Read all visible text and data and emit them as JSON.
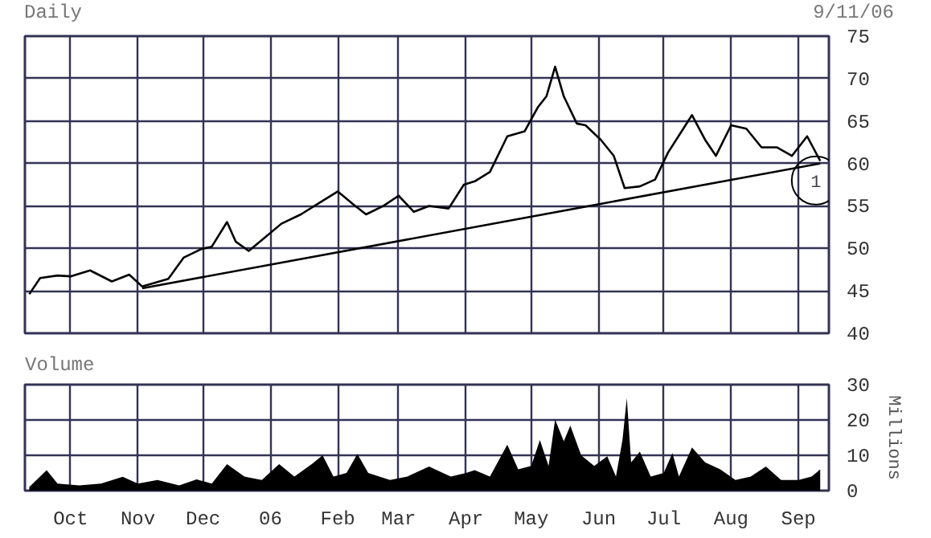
{
  "chart_data": [
    {
      "type": "line",
      "title": "Daily",
      "annotations": [
        "9/11/06",
        {
          "text": "1",
          "x": "2006-09-09",
          "y": 58.0
        }
      ],
      "x": [
        "2005-09-12",
        "2005-09-17",
        "2005-09-25",
        "2005-10-01",
        "2005-10-10",
        "2005-10-20",
        "2005-10-28",
        "2005-11-03",
        "2005-11-15",
        "2005-11-22",
        "2005-11-30",
        "2005-12-05",
        "2005-12-12",
        "2005-12-16",
        "2005-12-22",
        "2005-12-30",
        "2006-01-06",
        "2006-01-15",
        "2006-01-25",
        "2006-02-01",
        "2006-02-08",
        "2006-02-14",
        "2006-02-22",
        "2006-03-01",
        "2006-03-08",
        "2006-03-15",
        "2006-03-24",
        "2006-03-31",
        "2006-04-05",
        "2006-04-12",
        "2006-04-20",
        "2006-04-28",
        "2006-05-04",
        "2006-05-08",
        "2006-05-12",
        "2006-05-16",
        "2006-05-22",
        "2006-05-26",
        "2006-06-02",
        "2006-06-08",
        "2006-06-13",
        "2006-06-20",
        "2006-06-27",
        "2006-07-03",
        "2006-07-10",
        "2006-07-14",
        "2006-07-20",
        "2006-07-25",
        "2006-08-01",
        "2006-08-08",
        "2006-08-15",
        "2006-08-22",
        "2006-08-29",
        "2006-09-05",
        "2006-09-11"
      ],
      "series": [
        {
          "color": "#000000",
          "values": [
            44.6,
            46.5,
            46.8,
            46.7,
            47.4,
            46.1,
            46.9,
            45.5,
            46.4,
            48.9,
            49.9,
            50.2,
            53.1,
            50.8,
            49.7,
            51.4,
            52.9,
            54.0,
            55.6,
            56.7,
            55.2,
            54.0,
            55.0,
            56.2,
            54.3,
            55.0,
            54.7,
            57.5,
            57.9,
            59.0,
            63.2,
            63.8,
            66.6,
            67.9,
            71.4,
            67.9,
            64.7,
            64.5,
            62.8,
            60.9,
            57.1,
            57.3,
            58.1,
            61.3,
            64.1,
            65.7,
            62.8,
            60.9,
            64.5,
            64.1,
            61.9,
            61.9,
            60.9,
            63.2,
            60.3
          ]
        },
        {
          "type": "line",
          "color": "#000000",
          "x": [
            "2005-11-03",
            "2006-09-11"
          ],
          "values": [
            45.3,
            60.0
          ]
        }
      ],
      "xlim": [
        "2005-09-10",
        "2006-09-15"
      ],
      "ylim": [
        40,
        75
      ],
      "yticks": [
        40,
        45,
        50,
        55,
        60,
        65,
        70,
        75
      ],
      "xticks": [
        {
          "value": "2005-10-01",
          "label": null
        },
        {
          "value": "2005-11-01",
          "label": null
        },
        {
          "value": "2005-12-01",
          "label": null
        },
        {
          "value": "2006-01-01",
          "label": null
        },
        {
          "value": "2006-02-01",
          "label": null
        },
        {
          "value": "2006-03-01",
          "label": null
        },
        {
          "value": "2006-04-01",
          "label": null
        },
        {
          "value": "2006-05-01",
          "label": null
        },
        {
          "value": "2006-06-01",
          "label": null
        },
        {
          "value": "2006-07-01",
          "label": null
        },
        {
          "value": "2006-08-01",
          "label": null
        },
        {
          "value": "2006-09-01",
          "label": null
        }
      ],
      "grid": true,
      "tick_labels": "y",
      "marker": "none",
      "line_style": "solid"
    },
    {
      "type": "area",
      "title": "Volume",
      "y2label": "Millions",
      "x": [
        "2005-09-12",
        "2005-09-20",
        "2005-09-25",
        "2005-10-05",
        "2005-10-15",
        "2005-10-25",
        "2005-11-01",
        "2005-11-10",
        "2005-11-20",
        "2005-11-28",
        "2005-12-05",
        "2005-12-12",
        "2005-12-20",
        "2005-12-28",
        "2006-01-05",
        "2006-01-12",
        "2006-01-20",
        "2006-01-25",
        "2006-01-30",
        "2006-02-05",
        "2006-02-10",
        "2006-02-15",
        "2006-02-25",
        "2006-03-05",
        "2006-03-15",
        "2006-03-25",
        "2006-04-01",
        "2006-04-05",
        "2006-04-12",
        "2006-04-20",
        "2006-04-25",
        "2006-05-01",
        "2006-05-05",
        "2006-05-09",
        "2006-05-12",
        "2006-05-16",
        "2006-05-19",
        "2006-05-24",
        "2006-05-30",
        "2006-06-05",
        "2006-06-09",
        "2006-06-12",
        "2006-06-14",
        "2006-06-16",
        "2006-06-20",
        "2006-06-25",
        "2006-07-01",
        "2006-07-05",
        "2006-07-08",
        "2006-07-14",
        "2006-07-20",
        "2006-07-27",
        "2006-08-03",
        "2006-08-10",
        "2006-08-17",
        "2006-08-24",
        "2006-09-01",
        "2006-09-07",
        "2006-09-11"
      ],
      "series": [
        {
          "color": "#000000",
          "values": [
            1,
            5.8,
            2,
            1.5,
            2,
            3.9,
            2,
            3,
            1.5,
            3.2,
            2,
            7.5,
            4,
            3,
            7.5,
            4,
            7.5,
            10,
            4,
            5,
            10.4,
            5,
            3,
            4,
            6.8,
            4,
            5,
            5.8,
            4,
            13,
            6,
            7,
            14.3,
            7,
            20.1,
            14,
            18.4,
            10,
            7,
            9.7,
            4,
            14.3,
            26.2,
            8,
            11,
            4,
            5,
            10.6,
            4,
            12.2,
            8,
            6,
            3,
            4,
            6.8,
            3,
            3,
            4,
            6
          ]
        }
      ],
      "xlim": [
        "2005-09-10",
        "2006-09-15"
      ],
      "ylim": [
        0,
        30
      ],
      "yticks": [
        0,
        10,
        20,
        30
      ],
      "xticks": [
        {
          "value": "2005-10-01",
          "label": "Oct"
        },
        {
          "value": "2005-11-01",
          "label": "Nov"
        },
        {
          "value": "2005-12-01",
          "label": "Dec"
        },
        {
          "value": "2006-01-01",
          "label": "06"
        },
        {
          "value": "2006-02-01",
          "label": "Feb"
        },
        {
          "value": "2006-03-01",
          "label": "Mar"
        },
        {
          "value": "2006-04-01",
          "label": "Apr"
        },
        {
          "value": "2006-05-01",
          "label": "May"
        },
        {
          "value": "2006-06-01",
          "label": "Jun"
        },
        {
          "value": "2006-07-01",
          "label": "Jul"
        },
        {
          "value": "2006-08-01",
          "label": "Aug"
        },
        {
          "value": "2006-09-01",
          "label": "Sep"
        }
      ],
      "grid": true
    }
  ]
}
